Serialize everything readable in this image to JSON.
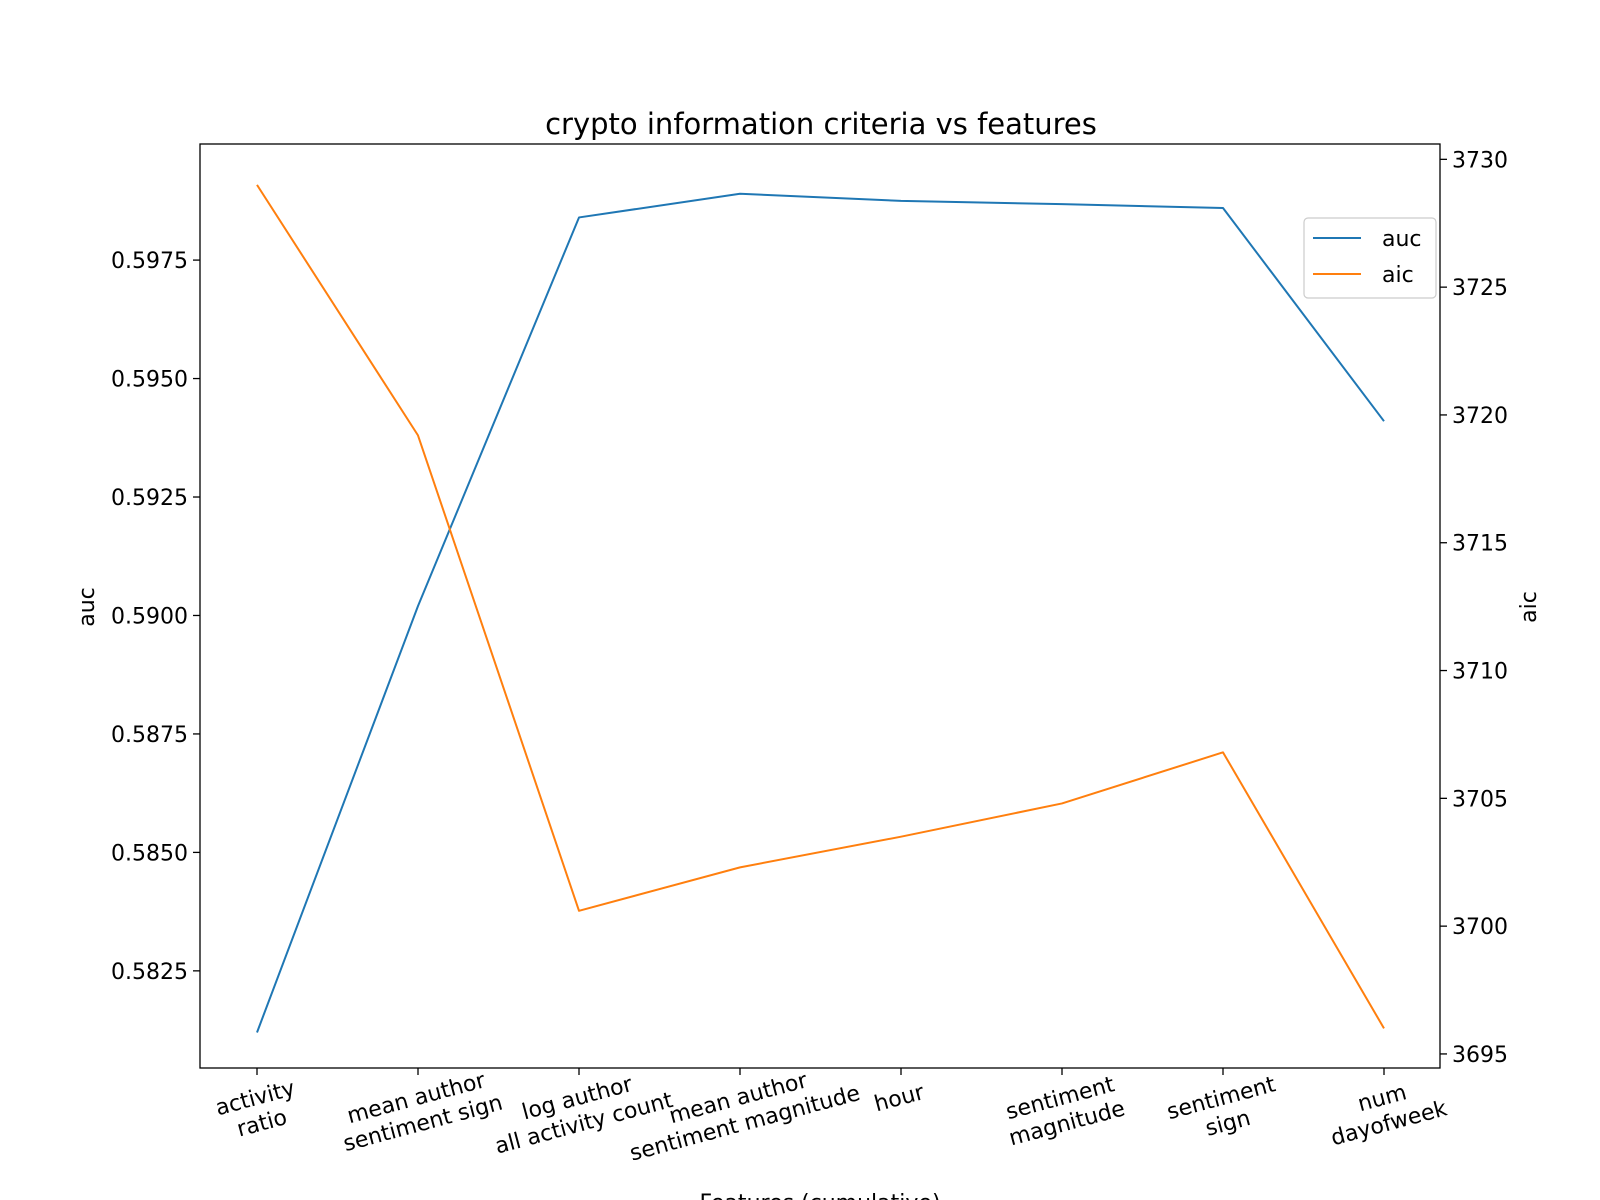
{
  "chart_data": {
    "type": "line",
    "title": "crypto information criteria vs features",
    "xlabel": "Features (cumulative)",
    "ylabel_left": "auc",
    "ylabel_right": "aic",
    "categories": [
      [
        "activity",
        "ratio"
      ],
      [
        "mean author",
        "sentiment sign"
      ],
      [
        "log author",
        "all activity count"
      ],
      [
        "mean author",
        "sentiment magnitude"
      ],
      [
        "hour"
      ],
      [
        "sentiment",
        "magnitude"
      ],
      [
        "sentiment",
        "sign"
      ],
      [
        "num",
        "dayofweek"
      ]
    ],
    "left_axis": {
      "ticks": [
        0.5825,
        0.585,
        0.5875,
        0.59,
        0.5925,
        0.595,
        0.5975
      ],
      "tick_labels": [
        "0.5825",
        "0.5850",
        "0.5875",
        "0.5900",
        "0.5925",
        "0.5950",
        "0.5975"
      ],
      "ylim": [
        0.58045,
        0.59995
      ]
    },
    "right_axis": {
      "ticks": [
        3695,
        3700,
        3705,
        3710,
        3715,
        3720,
        3725,
        3730
      ],
      "tick_labels": [
        "3695",
        "3700",
        "3705",
        "3710",
        "3715",
        "3720",
        "3725",
        "3730"
      ],
      "ylim": [
        3694.45,
        3730.6
      ]
    },
    "series": [
      {
        "name": "auc",
        "axis": "left",
        "color": "#1f77b4",
        "values": [
          0.5812,
          0.5902,
          0.5984,
          0.5989,
          0.59875,
          0.59868,
          0.5986,
          0.5941
        ]
      },
      {
        "name": "aic",
        "axis": "right",
        "color": "#ff7f0e",
        "values": [
          3729.0,
          3719.2,
          3700.6,
          3702.3,
          3703.5,
          3704.8,
          3706.8,
          3696.0
        ]
      }
    ],
    "legend": {
      "placement": "upper right",
      "entries": [
        "auc",
        "aic"
      ]
    },
    "grid": false
  }
}
